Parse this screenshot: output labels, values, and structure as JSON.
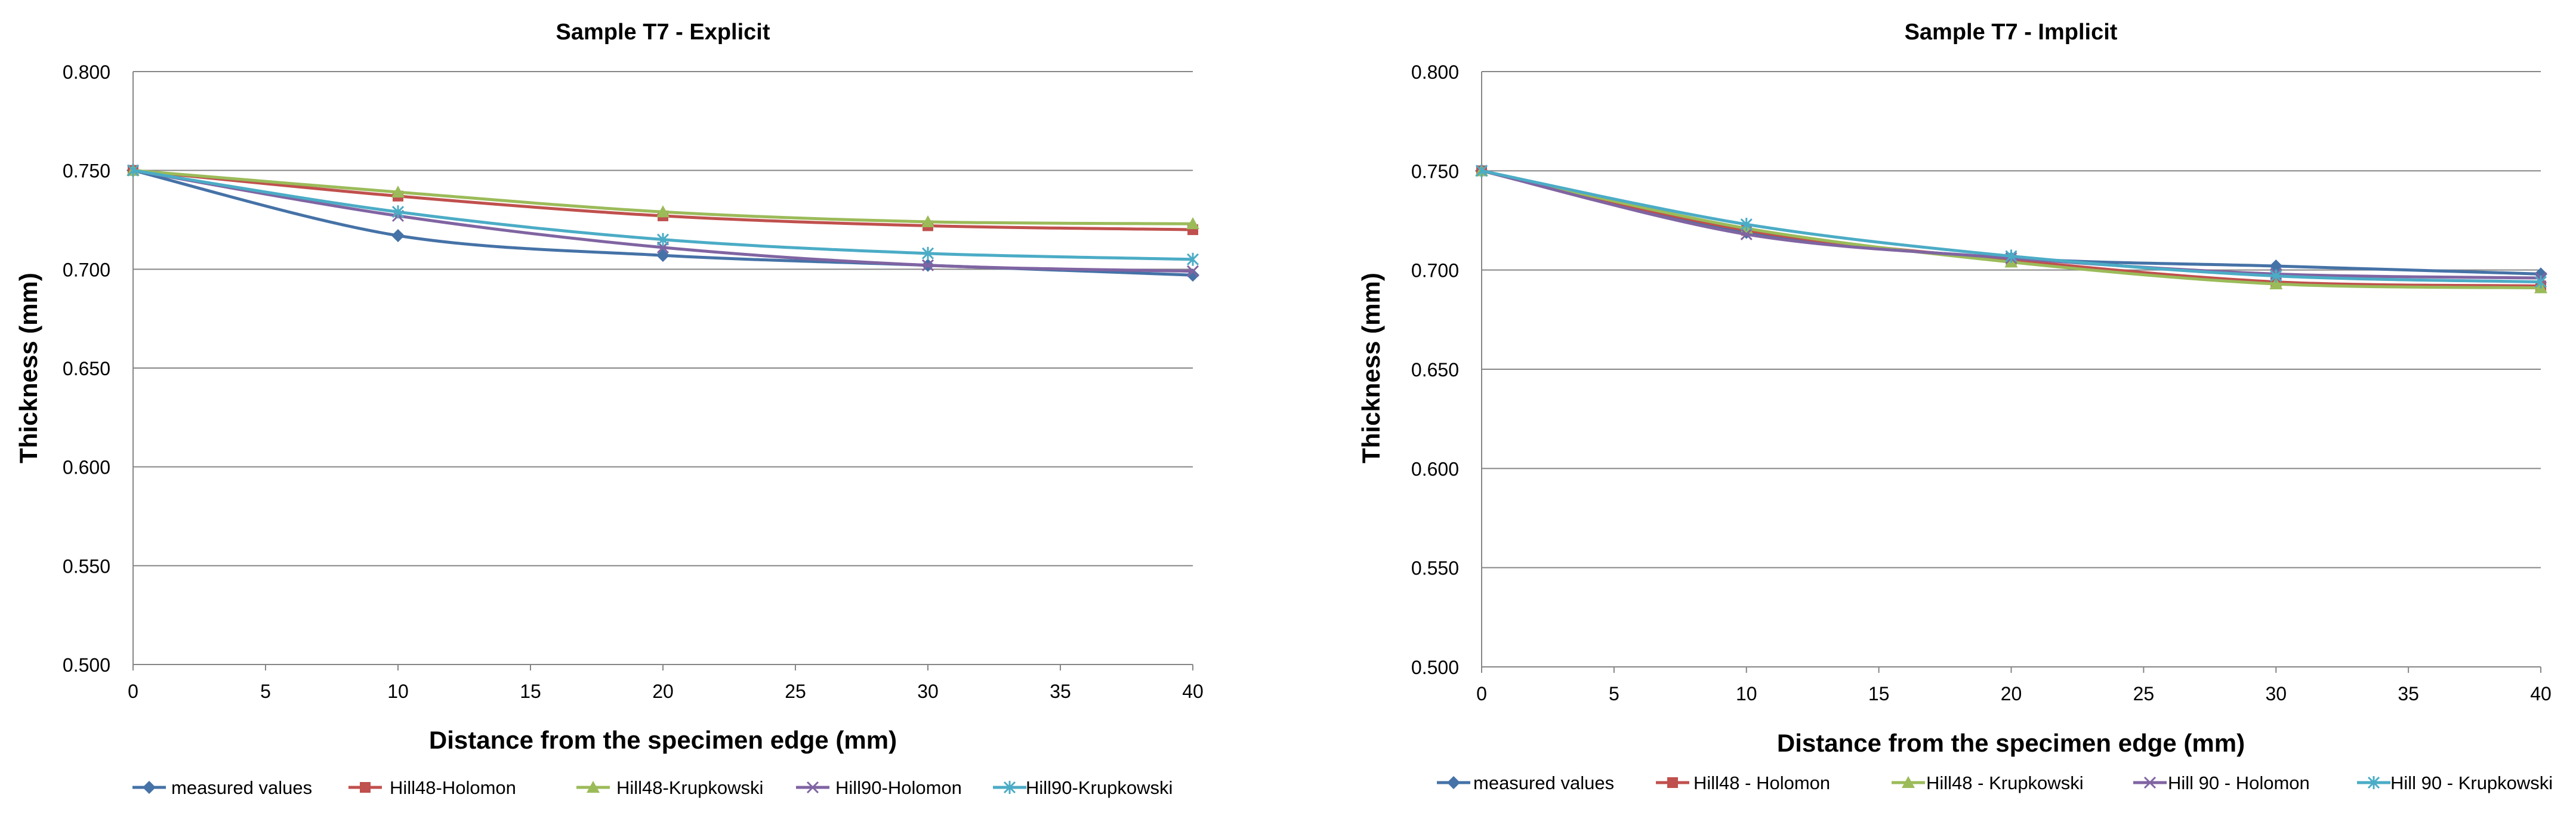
{
  "chart_data": [
    {
      "type": "line",
      "title": "Sample T7 - Explicit",
      "xlabel": "Distance from the specimen edge  (mm)",
      "ylabel": "Thickness  (mm)",
      "xlim": [
        0,
        40
      ],
      "ylim": [
        0.5,
        0.8
      ],
      "x_ticks": [
        "0",
        "5",
        "10",
        "15",
        "20",
        "25",
        "30",
        "35",
        "40"
      ],
      "y_ticks": [
        "0.500",
        "0.550",
        "0.600",
        "0.650",
        "0.700",
        "0.750",
        "0.800"
      ],
      "grid": "horizontal",
      "legend_position": "bottom",
      "x": [
        0,
        10,
        20,
        30,
        40
      ],
      "series": [
        {
          "name": "measured values",
          "color": "#4572A7",
          "marker": "diamond",
          "values": [
            0.75,
            0.717,
            0.707,
            0.702,
            0.697
          ]
        },
        {
          "name": "Hill48-Holomon",
          "color": "#C0504D",
          "marker": "square",
          "values": [
            0.75,
            0.737,
            0.727,
            0.722,
            0.72
          ]
        },
        {
          "name": "Hill48-Krupkowski",
          "color": "#9BBB59",
          "marker": "triangle",
          "values": [
            0.75,
            0.739,
            0.729,
            0.724,
            0.723
          ]
        },
        {
          "name": "Hill90-Holomon",
          "color": "#8064A2",
          "marker": "x",
          "values": [
            0.75,
            0.727,
            0.711,
            0.702,
            0.699
          ]
        },
        {
          "name": "Hill90-Krupkowski",
          "color": "#4BACC6",
          "marker": "star",
          "values": [
            0.75,
            0.729,
            0.715,
            0.708,
            0.705
          ]
        }
      ]
    },
    {
      "type": "line",
      "title": "Sample T7 - Implicit",
      "xlabel": "Distance from the specimen edge  (mm)",
      "ylabel": "Thickness  (mm)",
      "xlim": [
        0,
        40
      ],
      "ylim": [
        0.5,
        0.8
      ],
      "x_ticks": [
        "0",
        "5",
        "10",
        "15",
        "20",
        "25",
        "30",
        "35",
        "40"
      ],
      "y_ticks": [
        "0.500",
        "0.550",
        "0.600",
        "0.650",
        "0.700",
        "0.750",
        "0.800"
      ],
      "grid": "horizontal",
      "legend_position": "bottom",
      "x": [
        0,
        10,
        20,
        30,
        40
      ],
      "series": [
        {
          "name": "measured values",
          "color": "#4572A7",
          "marker": "diamond",
          "values": [
            0.75,
            0.719,
            0.706,
            0.702,
            0.698
          ]
        },
        {
          "name": "Hill48 - Holomon",
          "color": "#C0504D",
          "marker": "square",
          "values": [
            0.75,
            0.72,
            0.705,
            0.694,
            0.692
          ]
        },
        {
          "name": "Hill48 - Krupkowski",
          "color": "#9BBB59",
          "marker": "triangle",
          "values": [
            0.75,
            0.721,
            0.704,
            0.693,
            0.691
          ]
        },
        {
          "name": "Hill 90 - Holomon",
          "color": "#8064A2",
          "marker": "x",
          "values": [
            0.75,
            0.718,
            0.706,
            0.698,
            0.696
          ]
        },
        {
          "name": "Hill 90 - Krupkowski",
          "color": "#4BACC6",
          "marker": "star",
          "values": [
            0.75,
            0.723,
            0.707,
            0.697,
            0.694
          ]
        }
      ]
    }
  ]
}
